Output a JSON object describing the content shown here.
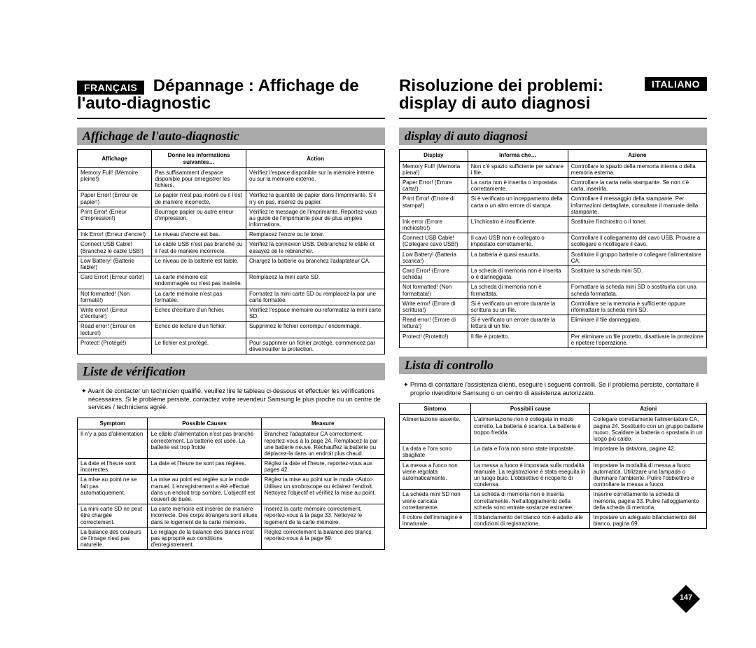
{
  "left": {
    "lang_badge": "FRANÇAIS",
    "title1": "Dépannage : Affichage de",
    "title2": "l'auto-diagnostic",
    "section1_title": "Affichage de l'auto-diagnostic",
    "table1": {
      "headers": [
        "Affichage",
        "Donne les informations suivantes…",
        "Action"
      ],
      "rows": [
        [
          "Memory Full! (Mémoire pleine!)",
          "Pas suffisamment d'espace disponible pour enregistrer les fichiers.",
          "Vérifiez l'espace disponible sur la mémoire interne ou sur la mémoire externe."
        ],
        [
          "Paper Error! (Erreur de papier!)",
          "Le papier n'est pas inséré ou il l'est de manière incorrecte.",
          "Vérifiez la quantité de papier dans l'imprimante. S'il n'y en pas, insérez du papier."
        ],
        [
          "Print Error! (Erreur d'impression!)",
          "Bourrage papier ou autre erreur d'impression.",
          "Vérifiez le message de l'imprimante. Reportez-vous au guide de l'imprimante pour de plus amples informations."
        ],
        [
          "Ink Error! (Erreur d'encre!)",
          "Le niveau d'encre est bas.",
          "Remplacez l'encre ou le toner."
        ],
        [
          "Connect USB Cable! (Branchez le cable USB!)",
          "Le câble USB n'est pas branché ou il l'est de manière incorrecte.",
          "Vérifiez la connexion USB. Débranchez le câble et essayez de le rebrancher."
        ],
        [
          "Low Battery! (Batterie faible!)",
          "Le niveau de la batterie est faible.",
          "Chargez la batterie ou branchez l'adaptateur CA."
        ],
        [
          "Card Error! (Erreur carte!)",
          "La carte mémoire est endommagée ou n'est pas insérée.",
          "Remplacez la mini carte SD."
        ],
        [
          "Not formatted! (Non formaté!)",
          "La carte mémoire n'est pas formatée.",
          "Formatez la mini carte SD ou remplacez-la par une carte formatée."
        ],
        [
          "Write error! (Erreur d'écriture!)",
          "Echec d'écriture d'un fichier.",
          "Vérifiez l'espace mémoire ou reformatez la mini carte SD."
        ],
        [
          "Read error! (Erreur en lecture!)",
          "Echec de lecture d'un fichier.",
          "Supprimez le fichier corrompu / endommagé."
        ],
        [
          "Protect! (Protégé!)",
          "Le fichier est protégé.",
          "Pour supprimer un fichier protégé, commencez par déverrouiller la protection."
        ]
      ]
    },
    "section2_title": "Liste de vérification",
    "note": "Avant de contacter un technicien qualifié, veuillez lire le tableau ci-dessous et effectuer les vérifications nécessaires. Si le problème persiste, contactez votre revendeur Samsung le plus proche ou un centre de services / techniciens agréé.",
    "table2": {
      "headers": [
        "Symptom",
        "Possible Causes",
        "Measure"
      ],
      "rows": [
        [
          "Il n'y a pas d'alimentation",
          "Le câble d'alimentation n'est pas branché correctement. La batterie est usée. La batterie est trop froide",
          "Branchez l'adaptateur CA correctement, reportez-vous à la page 24. Remplacez-la par une batterie neuve. Réchauffez la batterie ou déplacez-la dans un endroit plus chaud."
        ],
        [
          "La date et l'heure sont incorrectes.",
          "La date et l'heure ne sont pas réglées.",
          "Réglez la date et l'heure, reportez-vous aux pages 42."
        ],
        [
          "La mise au point ne se fait pas automatiquement.",
          "La mise au point est réglée sur le mode manuel. L'enregistrement a été effectué dans un endroit trop sombre. L'objectif est couvert de buée.",
          "Réglez la mise au point sur le mode <Auto>. Utilisez un stroboscope ou éclairez l'endroit. Nettoyez l'objectif et vérifiez la mise au point."
        ],
        [
          "La mini carte SD ne peut être chargée correctement.",
          "La carte mémoire est insérée de manière incorrecte. Des corps étrangers sont situés dans le logement de la carte mémoire.",
          "Insérez la carte mémoire correctement, reportez-vous à la page 33. Nettoyez le logement de la carte mémoire."
        ],
        [
          "La balance des couleurs de l'image n'est pas naturelle.",
          "Le réglage de la balance des blancs n'est pas approprié aux conditions d'enregistrement.",
          "Réglez correctement la balance des blancs, reportez-vous à la page 69."
        ]
      ]
    }
  },
  "right": {
    "lang_badge": "ITALIANO",
    "title1": "Risoluzione dei problemi:",
    "title2": "display di auto diagnosi",
    "section1_title": "display di auto diagnosi",
    "table1": {
      "headers": [
        "Display",
        "Informa che…",
        "Azione"
      ],
      "rows": [
        [
          "Memory Full! (Memoria piena!)",
          "Non c'è spazio sufficiente per salvare i file.",
          "Controllare lo spazio della memoria interna o della memoria esterna."
        ],
        [
          "Paper Error! (Errore carta!)",
          "La carta non è inserita o impostata correttamente.",
          "Controllare la carta nella stampante. Se non c'è carta, inserirla."
        ],
        [
          "Print Error! (Errore di stampa!)",
          "Si è verificato un inceppamento della carta o un altro errore di stampa.",
          "Controllare il messaggio della stampante. Per informazioni dettagliate, consultare il manuale della stampante."
        ],
        [
          "Ink error (Errore inchiostro!)",
          "L'inchiostro è insufficiente.",
          "Sostituire l'inchiostro o il toner."
        ],
        [
          "Connect USB Cable! (Collegare cavo USB!)",
          "Il cavo USB non è collegato o impostato correttamente.",
          "Controllare il collegamento del cavo USB. Provare a scollegare e ricollegare il cavo."
        ],
        [
          "Low Battery! (Batteria scarica!)",
          "La batteria è quasi esaurita.",
          "Sostituire il gruppo batterie o collegare l'alimentatore CA."
        ],
        [
          "Card Error! (Errore scheda)",
          "La scheda di memoria non è inserita o è danneggiata.",
          "Sostituire la scheda mini SD."
        ],
        [
          "Not formatted! (Non formattata!)",
          "La scheda di memoria non è formattata.",
          "Formattare la scheda mini SD o sostituirla con una scheda formattata."
        ],
        [
          "Write error! (Errore di scrittura!)",
          "Si è verificato un errore durante la scrittura su un file.",
          "Controllare se la memoria è sufficiente oppure riformattare la scheda mini SD."
        ],
        [
          "Read error! (Errore di lettura!)",
          "Si è verificato un errore durante la lettura di un file.",
          "Eliminare il file danneggiato."
        ],
        [
          "Protect! (Protetto!)",
          "Il file è protetto.",
          "Per eliminare un file protetto, disattivare la protezione e ripetere l'operazione."
        ]
      ]
    },
    "section2_title": "Lista di controllo",
    "note": "Prima di contattare l'assistenza clienti, eseguire i seguenti controlli. Se il problema persiste, contattare il proprio rivenditore Samsung o un centro di assistenza autorizzato.",
    "table2": {
      "headers": [
        "Sintomo",
        "Possibili cause",
        "Azioni"
      ],
      "rows": [
        [
          "Alimentazione assente.",
          "L'alimentazione non è collegata in modo corretto. La batteria è scarica. La batteria è troppo fredda.",
          "Collegare correttamente l'alimentatore CA, pagina 24. Sostituirlo con un gruppo batterie nuovo. Scaldare la batteria o spostarla in un luogo più caldo."
        ],
        [
          "La data e l'ora sono sbagliate",
          "La data e l'ora non sono state impostate.",
          "Impostare la data/ora, pagine 42."
        ],
        [
          "La messa a fuoco non viene regolata automaticamente.",
          "La messa a fuoco è impostata sulla modalità manuale. La registrazione è stata eseguita in un luogo buio. L'obbiettivo è ricoperto di condensa.",
          "Impostare la modalità di messa a fuoco automatica. Utilizzare una lampada o illuminare l'ambiente. Pulire l'obbiettivo e controllare la messa a fuoco."
        ],
        [
          "La scheda mini SD non viene caricata correttamente.",
          "La scheda di memoria non è inserita correttamente. Nell'alloggiamento della scheda sono entrate sostanze estranee.",
          "Inserire correttamente la scheda di memoria, pagina 33. Pulire l'alloggiamento della scheda di memoria."
        ],
        [
          "Il colore dell'immagine è innaturale.",
          "Il bilanciamento del bianco non è adatto alle condizioni di registrazione.",
          "Impostare un adeguato bilanciamento del bianco, pagina 69."
        ]
      ]
    }
  },
  "page_number": "147"
}
